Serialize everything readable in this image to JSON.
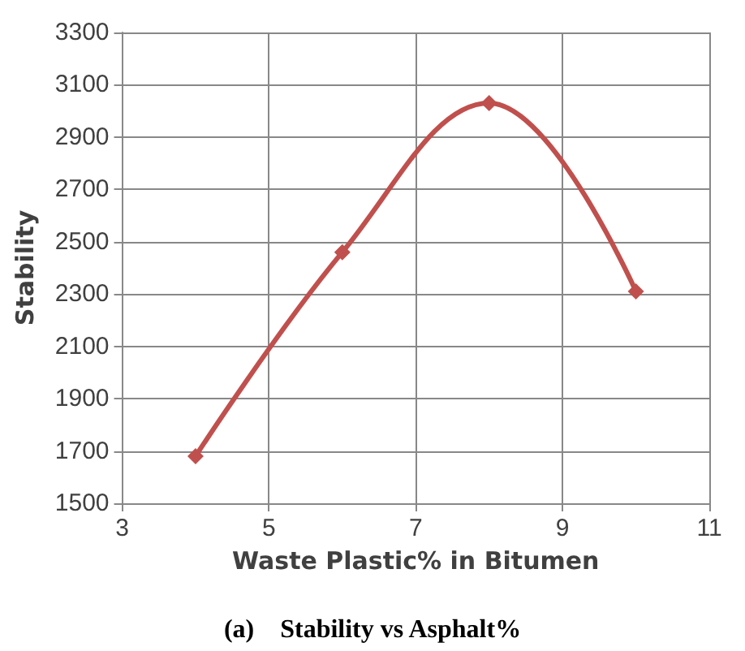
{
  "chart_data": {
    "type": "line",
    "title": "(a)    Stability vs Asphalt%",
    "xlabel": "Waste Plastic% in Bitumen",
    "ylabel": "Stability",
    "x": [
      4,
      6,
      8,
      10
    ],
    "series": [
      {
        "color": "#c0504d",
        "values": [
          1680,
          2460,
          3030,
          2310
        ]
      }
    ],
    "xlim": [
      3,
      11
    ],
    "xticks": [
      3,
      5,
      7,
      9,
      11
    ],
    "ylim": [
      1500,
      3300
    ],
    "yticks": [
      1500,
      1700,
      1900,
      2100,
      2300,
      2500,
      2700,
      2900,
      3100,
      3300
    ],
    "grid": true,
    "marker": "diamond",
    "line_style": "solid"
  }
}
